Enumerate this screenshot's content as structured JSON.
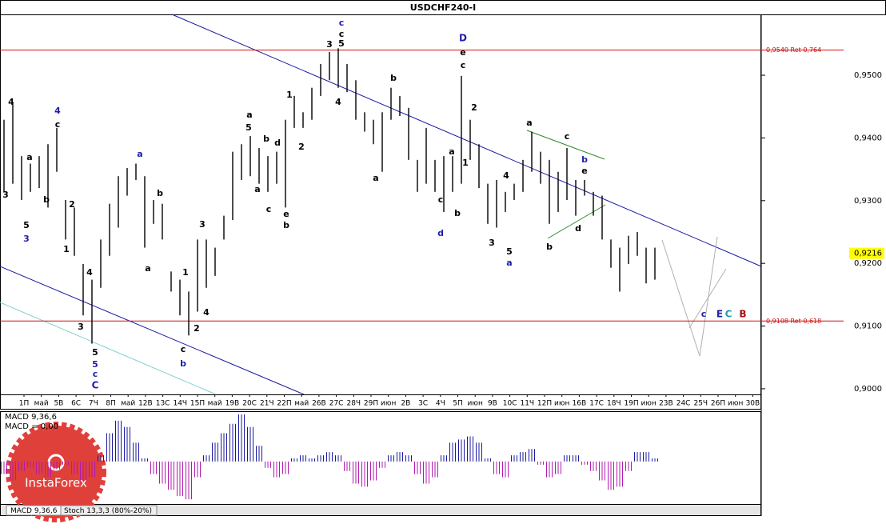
{
  "chart_data": {
    "type": "ohlc",
    "title": "USDCHF240-I",
    "ylim": [
      0.8991,
      0.9597
    ],
    "yticks": [
      {
        "value": 0.95,
        "label": "0,9500"
      },
      {
        "value": 0.94,
        "label": "0,9400"
      },
      {
        "value": 0.93,
        "label": "0,9300"
      },
      {
        "value": 0.92,
        "label": "0,9200"
      },
      {
        "value": 0.91,
        "label": "0,9100"
      },
      {
        "value": 0.9,
        "label": "0,9000"
      }
    ],
    "date_labels": [
      "1П",
      "май",
      "5В",
      "6С",
      "7Ч",
      "8П",
      "май",
      "12В",
      "13С",
      "14Ч",
      "15П",
      "май",
      "19В",
      "20С",
      "21Ч",
      "22П",
      "май",
      "26В",
      "27С",
      "28Ч",
      "29П",
      "июн",
      "2В",
      "3С",
      "4Ч",
      "5П",
      "июн",
      "9В",
      "10С",
      "11Ч",
      "12П",
      "июн",
      "16В",
      "17С",
      "18Ч",
      "19П",
      "июн",
      "23В",
      "24С",
      "25Ч",
      "26П",
      "июн",
      "30В"
    ],
    "color": "#000000",
    "high": [
      0.9429,
      0.9454,
      0.9371,
      0.9359,
      0.9371,
      0.939,
      0.9416,
      0.9301,
      0.9289,
      0.9199,
      0.9174,
      0.9238,
      0.9295,
      0.9339,
      0.9352,
      0.9359,
      0.9339,
      0.9301,
      0.9295,
      0.9187,
      0.9174,
      0.9155,
      0.9238,
      0.9238,
      0.9225,
      0.9276,
      0.9378,
      0.939,
      0.9403,
      0.9384,
      0.9371,
      0.9378,
      0.9429,
      0.9467,
      0.9441,
      0.948,
      0.9518,
      0.9537,
      0.9543,
      0.9518,
      0.9492,
      0.9441,
      0.9429,
      0.9441,
      0.948,
      0.9467,
      0.9448,
      0.9365,
      0.9416,
      0.9365,
      0.9371,
      0.9371,
      0.9499,
      0.9429,
      0.939,
      0.9327,
      0.9333,
      0.9314,
      0.9327,
      0.9365,
      0.941,
      0.9378,
      0.9365,
      0.9346,
      0.9384,
      0.9333,
      0.9333,
      0.9314,
      0.9308,
      0.9238,
      0.9225,
      0.9244,
      0.925,
      0.9225,
      0.9225
    ],
    "low": [
      0.9314,
      0.9327,
      0.9301,
      0.9314,
      0.932,
      0.9289,
      0.9346,
      0.9238,
      0.9212,
      0.9117,
      0.9072,
      0.9161,
      0.9212,
      0.9257,
      0.9308,
      0.9333,
      0.9225,
      0.9263,
      0.9238,
      0.9155,
      0.9117,
      0.9085,
      0.9123,
      0.9161,
      0.918,
      0.9238,
      0.9269,
      0.9333,
      0.9339,
      0.9327,
      0.9314,
      0.9327,
      0.9289,
      0.9416,
      0.9416,
      0.9429,
      0.9467,
      0.9492,
      0.948,
      0.9473,
      0.9429,
      0.941,
      0.939,
      0.9346,
      0.9429,
      0.9435,
      0.9365,
      0.9314,
      0.9327,
      0.9314,
      0.9282,
      0.9314,
      0.9327,
      0.9365,
      0.932,
      0.9263,
      0.9257,
      0.9282,
      0.9301,
      0.9314,
      0.9346,
      0.9327,
      0.9263,
      0.9282,
      0.9301,
      0.9276,
      0.9308,
      0.9276,
      0.9238,
      0.9193,
      0.9155,
      0.9199,
      0.9212,
      0.9168,
      0.9174
    ],
    "levels": [
      {
        "value": 0.954,
        "label": "0,9540 Ret 0,764"
      },
      {
        "value": 0.9108,
        "label": "0,9108 Ret 0,618"
      }
    ],
    "level_color": "#d01010",
    "current_price": {
      "value": 0.9216,
      "label": "0,9216"
    },
    "annotations": [
      {
        "text": "4",
        "color": "#000000"
      },
      {
        "text": "3",
        "color": "#000000"
      },
      {
        "text": "a",
        "color": "#000000"
      },
      {
        "text": "b",
        "color": "#000000"
      },
      {
        "text": "2",
        "color": "#000000"
      },
      {
        "text": "1",
        "color": "#000000"
      },
      {
        "text": "5",
        "color": "#000000"
      },
      {
        "text": "3",
        "color": "#1f1fa8"
      },
      {
        "text": "4",
        "color": "#1f1fa8"
      },
      {
        "text": "c",
        "color": "#000000"
      },
      {
        "text": "4",
        "color": "#000000"
      },
      {
        "text": "3",
        "color": "#000000"
      },
      {
        "text": "5",
        "color": "#000000"
      },
      {
        "text": "5",
        "color": "#1f1fa8"
      },
      {
        "text": "c",
        "color": "#1f1fa8"
      },
      {
        "text": "C",
        "color": "#1f1fa8"
      },
      {
        "text": "a",
        "color": "#1f1fa8"
      },
      {
        "text": "b",
        "color": "#000000"
      },
      {
        "text": "a",
        "color": "#000000"
      },
      {
        "text": "1",
        "color": "#000000"
      },
      {
        "text": "4",
        "color": "#000000"
      },
      {
        "text": "2",
        "color": "#000000"
      },
      {
        "text": "c",
        "color": "#000000"
      },
      {
        "text": "b",
        "color": "#1f1fa8"
      },
      {
        "text": "3",
        "color": "#000000"
      },
      {
        "text": "a",
        "color": "#000000"
      },
      {
        "text": "5",
        "color": "#000000"
      },
      {
        "text": "b",
        "color": "#000000"
      },
      {
        "text": "d",
        "color": "#000000"
      },
      {
        "text": "a",
        "color": "#000000"
      },
      {
        "text": "c",
        "color": "#000000"
      },
      {
        "text": "e",
        "color": "#000000"
      },
      {
        "text": "b",
        "color": "#000000"
      },
      {
        "text": "1",
        "color": "#000000"
      },
      {
        "text": "2",
        "color": "#000000"
      },
      {
        "text": "3",
        "color": "#000000"
      },
      {
        "text": "c",
        "color": "#1f1fa8"
      },
      {
        "text": "c",
        "color": "#000000"
      },
      {
        "text": "5",
        "color": "#000000"
      },
      {
        "text": "4",
        "color": "#000000"
      },
      {
        "text": "a",
        "color": "#000000"
      },
      {
        "text": "b",
        "color": "#000000"
      },
      {
        "text": "D",
        "color": "#1f1fa8"
      },
      {
        "text": "e",
        "color": "#000000"
      },
      {
        "text": "c",
        "color": "#000000"
      },
      {
        "text": "2",
        "color": "#000000"
      },
      {
        "text": "a",
        "color": "#000000"
      },
      {
        "text": "1",
        "color": "#000000"
      },
      {
        "text": "c",
        "color": "#000000"
      },
      {
        "text": "d",
        "color": "#1f1fa8"
      },
      {
        "text": "b",
        "color": "#000000"
      },
      {
        "text": "4",
        "color": "#000000"
      },
      {
        "text": "3",
        "color": "#000000"
      },
      {
        "text": "5",
        "color": "#000000"
      },
      {
        "text": "a",
        "color": "#1f1fa8"
      },
      {
        "text": "a",
        "color": "#000000"
      },
      {
        "text": "c",
        "color": "#000000"
      },
      {
        "text": "b",
        "color": "#1f1fa8"
      },
      {
        "text": "e",
        "color": "#000000"
      },
      {
        "text": "d",
        "color": "#000000"
      },
      {
        "text": "b",
        "color": "#000000"
      },
      {
        "text": "c",
        "color": "#1f1fa8"
      },
      {
        "text": "E",
        "color": "#1f1fa8"
      },
      {
        "text": "C",
        "color": "#1fa0b0"
      },
      {
        "text": "B",
        "color": "#a01010"
      }
    ],
    "macd": {
      "labels": [
        "MACD 9,36,6",
        "MACD = 0,00"
      ],
      "color": "#b01ab0",
      "ylim": [
        -0.0027,
        0.0031
      ],
      "values": [
        -0.0008,
        -0.0012,
        -0.0006,
        -0.0004,
        -0.0008,
        -0.001,
        -0.0005,
        -0.0002,
        -0.0008,
        -0.0012,
        -0.001,
        0.0004,
        0.0018,
        0.0026,
        0.0022,
        0.0012,
        0.0002,
        -0.0008,
        -0.0014,
        -0.0018,
        -0.0022,
        -0.0024,
        -0.001,
        0.0004,
        0.0012,
        0.0018,
        0.0024,
        0.003,
        0.0022,
        0.001,
        -0.0004,
        -0.001,
        -0.0008,
        0.0002,
        0.0004,
        0.0002,
        0.0004,
        0.0006,
        0.0004,
        -0.0006,
        -0.0014,
        -0.0016,
        -0.0012,
        -0.0004,
        0.0004,
        0.0006,
        0.0004,
        -0.0008,
        -0.0014,
        -0.001,
        0.0004,
        0.0012,
        0.0014,
        0.0016,
        0.0012,
        0.0002,
        -0.0008,
        -0.001,
        0.0004,
        0.0006,
        0.0008,
        -0.0002,
        -0.001,
        -0.0008,
        0.0004,
        0.0004,
        -0.0002,
        -0.0006,
        -0.0012,
        -0.0018,
        -0.0016,
        -0.0006,
        0.0006,
        0.0006,
        0.0002
      ]
    },
    "tabs": [
      "MACD 9,36,6",
      "Stoch 13,3,3 (80%-20%)"
    ],
    "watermark": "InstaForex"
  }
}
